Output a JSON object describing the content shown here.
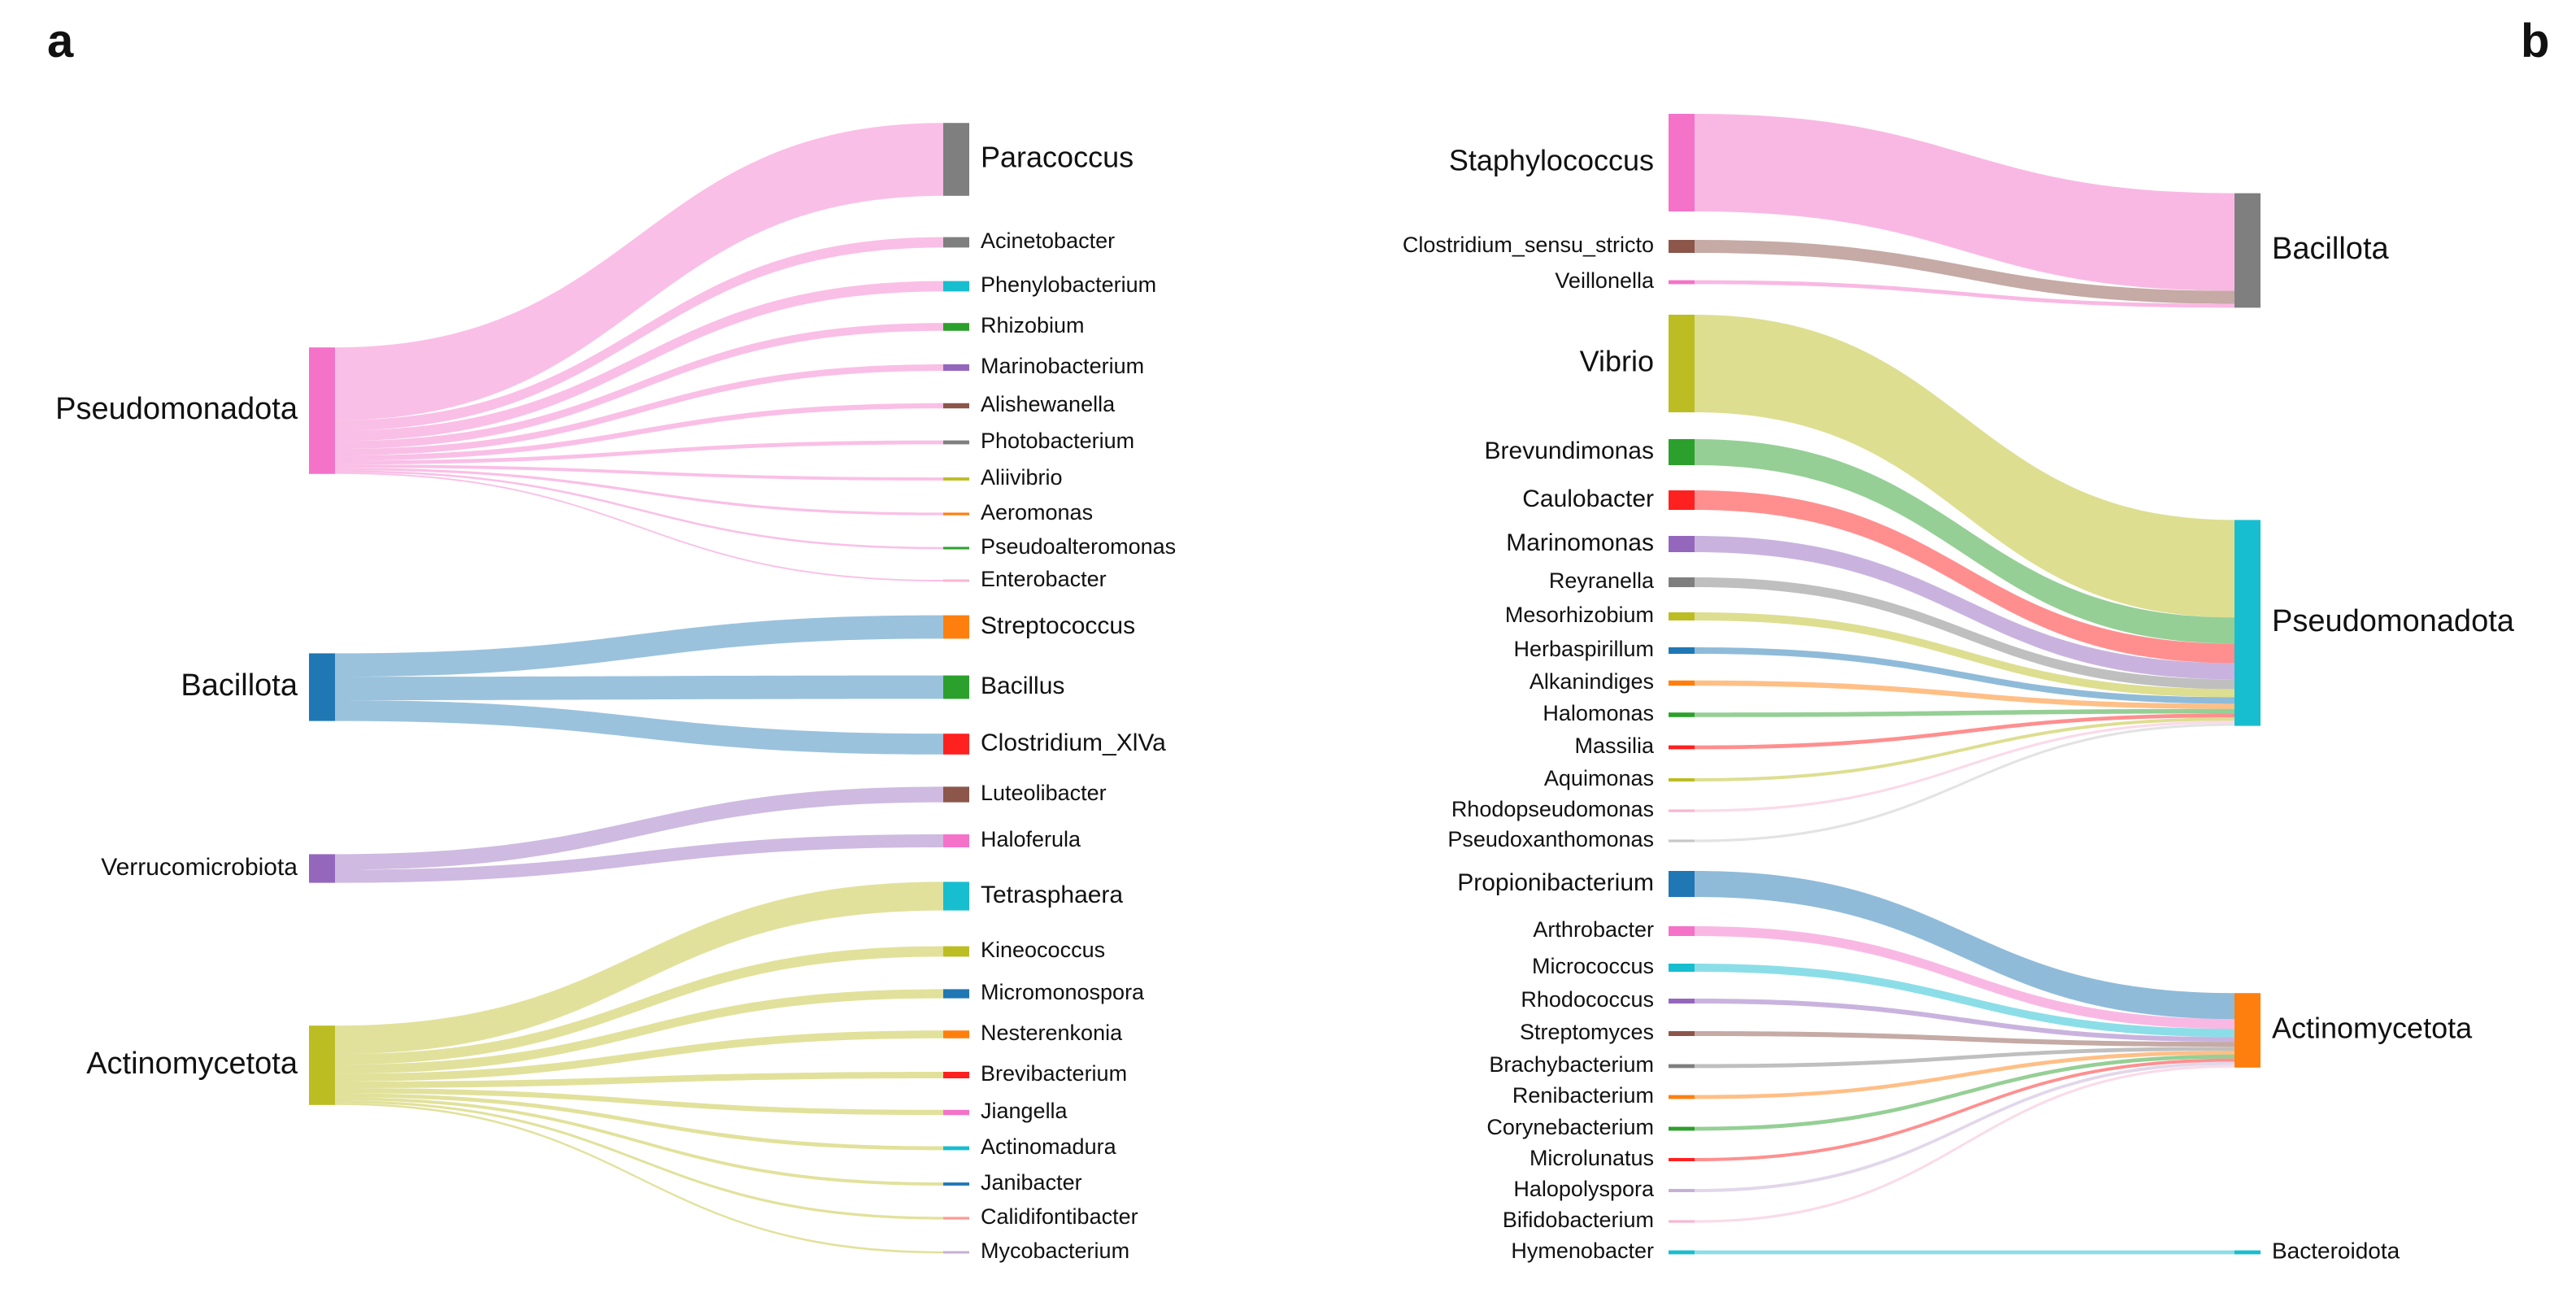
{
  "panels": {
    "a": {
      "letter": "a",
      "sources": [
        {
          "name": "Pseudomonadota",
          "color": "#f472c8"
        },
        {
          "name": "Bacillota",
          "color": "#1f77b4"
        },
        {
          "name": "Verrucomicrobiota",
          "color": "#9467bd"
        },
        {
          "name": "Actinomycetota",
          "color": "#bcbd22"
        }
      ],
      "targets": [
        {
          "name": "Paracoccus",
          "source": 0,
          "weight": 28,
          "color": "#7f7f7f"
        },
        {
          "name": "Acinetobacter",
          "source": 0,
          "weight": 4,
          "color": "#7f7f7f"
        },
        {
          "name": "Phenylobacterium",
          "source": 0,
          "weight": 4,
          "color": "#17becf"
        },
        {
          "name": "Rhizobium",
          "source": 0,
          "weight": 3,
          "color": "#2ca02c"
        },
        {
          "name": "Marinobacterium",
          "source": 0,
          "weight": 2.5,
          "color": "#9467bd"
        },
        {
          "name": "Alishewanella",
          "source": 0,
          "weight": 2,
          "color": "#8c564b"
        },
        {
          "name": "Photobacterium",
          "source": 0,
          "weight": 1.5,
          "color": "#7f7f7f"
        },
        {
          "name": "Aliivibrio",
          "source": 0,
          "weight": 1.2,
          "color": "#bcbd22"
        },
        {
          "name": "Aeromonas",
          "source": 0,
          "weight": 1,
          "color": "#ff7f0e"
        },
        {
          "name": "Pseudoalteromonas",
          "source": 0,
          "weight": 0.8,
          "color": "#2ca02c"
        },
        {
          "name": "Enterobacter",
          "source": 0,
          "weight": 0.6,
          "color": "#f7b6d2"
        },
        {
          "name": "Streptococcus",
          "source": 1,
          "weight": 9,
          "color": "#ff7f0e"
        },
        {
          "name": "Bacillus",
          "source": 1,
          "weight": 9,
          "color": "#2ca02c"
        },
        {
          "name": "Clostridium_XlVa",
          "source": 1,
          "weight": 8,
          "color": "#ff2020"
        },
        {
          "name": "Luteolibacter",
          "source": 2,
          "weight": 6,
          "color": "#8c564b"
        },
        {
          "name": "Haloferula",
          "source": 2,
          "weight": 5,
          "color": "#f472c8"
        },
        {
          "name": "Tetrasphaera",
          "source": 3,
          "weight": 11,
          "color": "#17becf"
        },
        {
          "name": "Kineococcus",
          "source": 3,
          "weight": 4,
          "color": "#bcbd22"
        },
        {
          "name": "Micromonospora",
          "source": 3,
          "weight": 3.5,
          "color": "#1f77b4"
        },
        {
          "name": "Nesterenkonia",
          "source": 3,
          "weight": 3,
          "color": "#ff7f0e"
        },
        {
          "name": "Brevibacterium",
          "source": 3,
          "weight": 2.5,
          "color": "#ff2020"
        },
        {
          "name": "Jiangella",
          "source": 3,
          "weight": 2,
          "color": "#f472c8"
        },
        {
          "name": "Actinomadura",
          "source": 3,
          "weight": 1.5,
          "color": "#17becf"
        },
        {
          "name": "Janibacter",
          "source": 3,
          "weight": 1.2,
          "color": "#1f77b4"
        },
        {
          "name": "Calidifontibacter",
          "source": 3,
          "weight": 1,
          "color": "#ff9896"
        },
        {
          "name": "Mycobacterium",
          "source": 3,
          "weight": 0.8,
          "color": "#c5b0d5"
        }
      ]
    },
    "b": {
      "letter": "b",
      "targets": [
        {
          "name": "Bacillota",
          "color": "#7f7f7f"
        },
        {
          "name": "Pseudomonadota",
          "color": "#17becf"
        },
        {
          "name": "Actinomycetota",
          "color": "#ff7f0e"
        },
        {
          "name": "Bacteroidota",
          "color": "#17becf"
        }
      ],
      "sources": [
        {
          "name": "Staphylococcus",
          "target": 0,
          "weight": 30,
          "color": "#f472c8"
        },
        {
          "name": "Clostridium_sensu_stricto",
          "target": 0,
          "weight": 4,
          "color": "#8c564b"
        },
        {
          "name": "Veillonella",
          "target": 0,
          "weight": 1.2,
          "color": "#f472c8"
        },
        {
          "name": "Vibrio",
          "target": 1,
          "weight": 30,
          "color": "#bcbd22"
        },
        {
          "name": "Brevundimonas",
          "target": 1,
          "weight": 8,
          "color": "#2ca02c"
        },
        {
          "name": "Caulobacter",
          "target": 1,
          "weight": 6,
          "color": "#ff2020"
        },
        {
          "name": "Marinomonas",
          "target": 1,
          "weight": 5,
          "color": "#9467bd"
        },
        {
          "name": "Reyranella",
          "target": 1,
          "weight": 3,
          "color": "#7f7f7f"
        },
        {
          "name": "Mesorhizobium",
          "target": 1,
          "weight": 2.5,
          "color": "#bcbd22"
        },
        {
          "name": "Herbaspirillum",
          "target": 1,
          "weight": 2,
          "color": "#1f77b4"
        },
        {
          "name": "Alkanindiges",
          "target": 1,
          "weight": 1.6,
          "color": "#ff7f0e"
        },
        {
          "name": "Halomonas",
          "target": 1,
          "weight": 1.4,
          "color": "#2ca02c"
        },
        {
          "name": "Massilia",
          "target": 1,
          "weight": 1.2,
          "color": "#ff2020"
        },
        {
          "name": "Aquimonas",
          "target": 1,
          "weight": 1,
          "color": "#bcbd22"
        },
        {
          "name": "Rhodopseudomonas",
          "target": 1,
          "weight": 0.8,
          "color": "#f7b6d2"
        },
        {
          "name": "Pseudoxanthomonas",
          "target": 1,
          "weight": 0.8,
          "color": "#c7c7c7"
        },
        {
          "name": "Propionibacterium",
          "target": 2,
          "weight": 8,
          "color": "#1f77b4"
        },
        {
          "name": "Arthrobacter",
          "target": 2,
          "weight": 3,
          "color": "#f472c8"
        },
        {
          "name": "Micrococcus",
          "target": 2,
          "weight": 2.5,
          "color": "#17becf"
        },
        {
          "name": "Rhodococcus",
          "target": 2,
          "weight": 1.5,
          "color": "#9467bd"
        },
        {
          "name": "Streptomyces",
          "target": 2,
          "weight": 1.5,
          "color": "#8c564b"
        },
        {
          "name": "Brachybacterium",
          "target": 2,
          "weight": 1.2,
          "color": "#7f7f7f"
        },
        {
          "name": "Renibacterium",
          "target": 2,
          "weight": 1.2,
          "color": "#ff7f0e"
        },
        {
          "name": "Corynebacterium",
          "target": 2,
          "weight": 1.2,
          "color": "#2ca02c"
        },
        {
          "name": "Microlunatus",
          "target": 2,
          "weight": 1,
          "color": "#ff2020"
        },
        {
          "name": "Halopolyspora",
          "target": 2,
          "weight": 1,
          "color": "#c5b0d5"
        },
        {
          "name": "Bifidobacterium",
          "target": 2,
          "weight": 0.8,
          "color": "#f7b6d2"
        },
        {
          "name": "Hymenobacter",
          "target": 3,
          "weight": 1.2,
          "color": "#17becf"
        }
      ]
    }
  }
}
